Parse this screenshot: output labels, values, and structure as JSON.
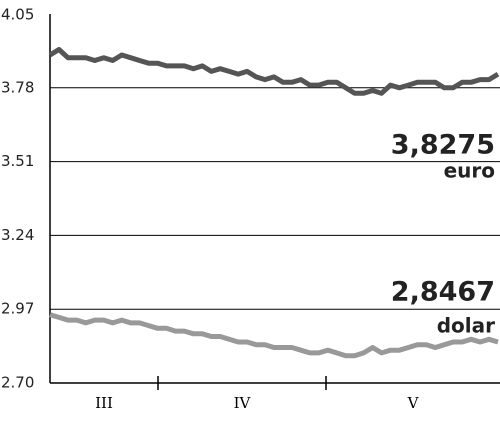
{
  "chart_data": {
    "type": "line",
    "months": [
      "III",
      "IV",
      "V"
    ],
    "ylim": [
      2.7,
      4.05
    ],
    "yticks": [
      {
        "value": 2.7,
        "label": "2.70"
      },
      2.97,
      3.24,
      3.51,
      3.78,
      4.05
    ],
    "grid": true,
    "series": [
      {
        "name": "euro",
        "color": "#555555",
        "last_label": "3,8275",
        "values": [
          3.9,
          3.92,
          3.89,
          3.89,
          3.89,
          3.88,
          3.89,
          3.88,
          3.9,
          3.89,
          3.88,
          3.87,
          3.87,
          3.86,
          3.86,
          3.86,
          3.85,
          3.86,
          3.84,
          3.85,
          3.84,
          3.83,
          3.84,
          3.82,
          3.81,
          3.82,
          3.8,
          3.8,
          3.81,
          3.79,
          3.79,
          3.8,
          3.8,
          3.78,
          3.76,
          3.76,
          3.77,
          3.76,
          3.79,
          3.78,
          3.79,
          3.8,
          3.8,
          3.8,
          3.78,
          3.78,
          3.8,
          3.8,
          3.81,
          3.81,
          3.83
        ]
      },
      {
        "name": "dolar",
        "color": "#999999",
        "last_label": "2,8467",
        "values": [
          2.95,
          2.94,
          2.93,
          2.93,
          2.92,
          2.93,
          2.93,
          2.92,
          2.93,
          2.92,
          2.92,
          2.91,
          2.9,
          2.9,
          2.89,
          2.89,
          2.88,
          2.88,
          2.87,
          2.87,
          2.86,
          2.85,
          2.85,
          2.84,
          2.84,
          2.83,
          2.83,
          2.83,
          2.82,
          2.81,
          2.81,
          2.82,
          2.81,
          2.8,
          2.8,
          2.81,
          2.83,
          2.81,
          2.82,
          2.82,
          2.83,
          2.84,
          2.84,
          2.83,
          2.84,
          2.85,
          2.85,
          2.86,
          2.85,
          2.86,
          2.85
        ]
      }
    ]
  }
}
